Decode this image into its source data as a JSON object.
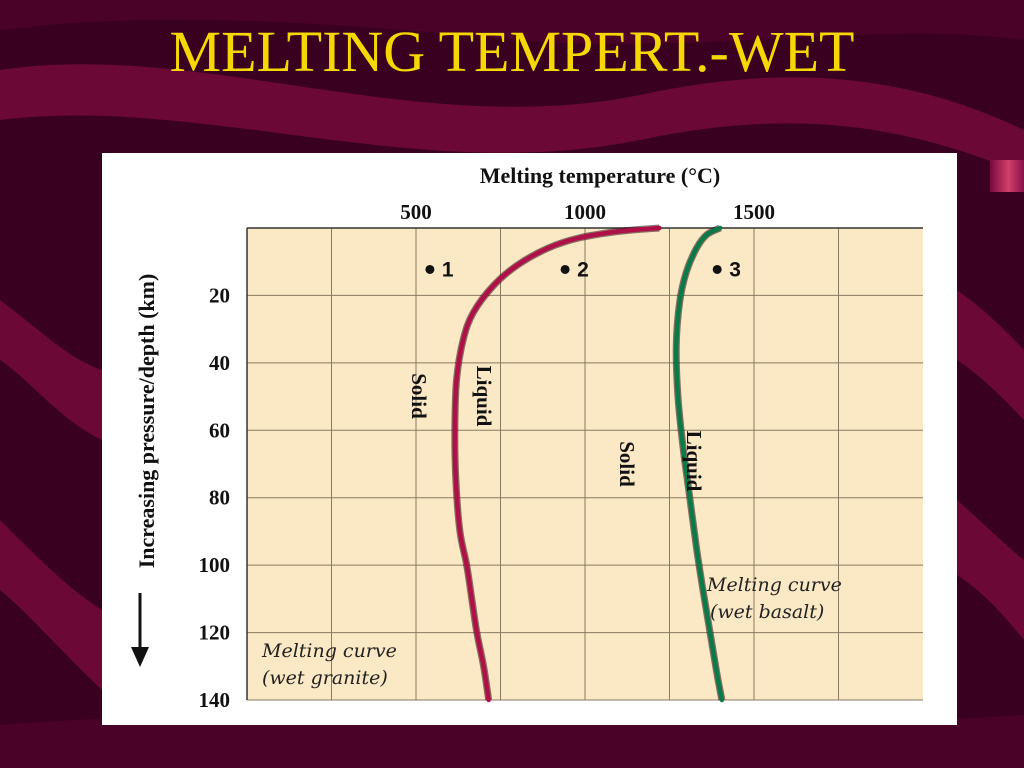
{
  "slide": {
    "title": "MELTING TEMPERT.-WET"
  },
  "colors": {
    "background": "#3a0020",
    "title": "#f5d800",
    "plot_area": "#fbe8c4",
    "granite_curve": "#b01048",
    "basalt_curve": "#0a7a48"
  },
  "chart_data": {
    "type": "line",
    "xlabel": "Melting temperature (°C)",
    "ylabel": "Increasing pressure/depth (km)",
    "x_ticks": [
      "500",
      "1000",
      "1500"
    ],
    "y_ticks": [
      "20",
      "40",
      "60",
      "80",
      "100",
      "120",
      "140"
    ],
    "xlim": [
      0,
      2000
    ],
    "ylim": [
      0,
      140
    ],
    "x_axis_position": "top",
    "y_axis_inverted": true,
    "grid": true,
    "series": [
      {
        "name": "Melting curve (wet granite)",
        "label_lines": [
          "Melting curve",
          "(wet granite)"
        ],
        "x": [
          1220,
          1100,
          980,
          890,
          800,
          730,
          670,
          640,
          620,
          615,
          618,
          630,
          650,
          665,
          680,
          700,
          715
        ],
        "y": [
          0,
          1,
          3,
          6,
          11,
          17,
          25,
          33,
          45,
          60,
          75,
          90,
          100,
          110,
          120,
          130,
          140
        ],
        "region_labels": [
          "Solid",
          "Liquid"
        ]
      },
      {
        "name": "Melting curve (wet basalt)",
        "label_lines": [
          "Melting curve",
          "(wet basalt)"
        ],
        "x": [
          1400,
          1360,
          1330,
          1300,
          1280,
          1270,
          1275,
          1290,
          1310,
          1330,
          1350,
          1370,
          1390,
          1405
        ],
        "y": [
          0,
          2,
          6,
          13,
          22,
          35,
          50,
          65,
          80,
          95,
          108,
          120,
          132,
          140
        ],
        "region_labels": [
          "Solid",
          "Liquid"
        ]
      }
    ],
    "points": [
      {
        "label": "1",
        "x": 550,
        "y": 12
      },
      {
        "label": "2",
        "x": 950,
        "y": 12
      },
      {
        "label": "3",
        "x": 1400,
        "y": 12
      }
    ]
  }
}
